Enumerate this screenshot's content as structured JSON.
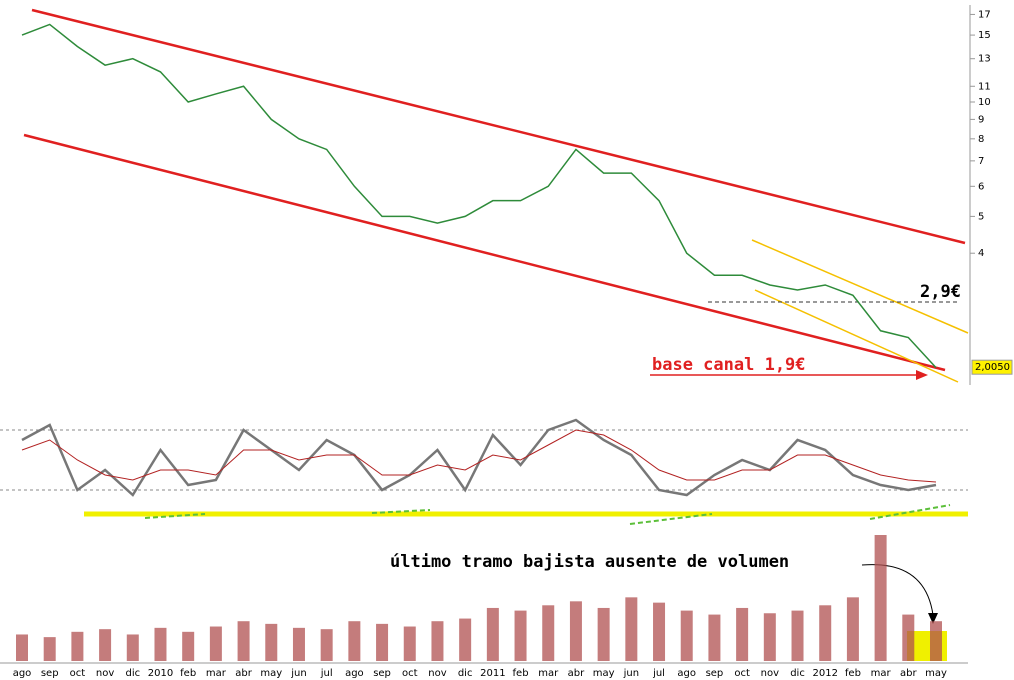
{
  "chart_data": [
    {
      "type": "line",
      "log_scale": true,
      "color": "#2e8b3a",
      "categories": [
        "ago",
        "sep",
        "oct",
        "nov",
        "dic",
        "2010",
        "feb",
        "mar",
        "abr",
        "may",
        "jun",
        "jul",
        "ago",
        "sep",
        "oct",
        "nov",
        "dic",
        "2011",
        "feb",
        "mar",
        "abr",
        "may",
        "jun",
        "jul",
        "ago",
        "sep",
        "oct",
        "nov",
        "dic",
        "2012",
        "feb",
        "mar",
        "abr",
        "may"
      ],
      "values": [
        15,
        16,
        14,
        12.5,
        13,
        12,
        10,
        10.5,
        11,
        9,
        8,
        7.5,
        6,
        5,
        5,
        4.8,
        5,
        5.5,
        5.5,
        6,
        7.5,
        6.5,
        6.5,
        5.5,
        4,
        3.5,
        3.5,
        3.3,
        3.2,
        3.3,
        3.1,
        2.5,
        2.4,
        2.0
      ],
      "ylim": [
        1.8,
        18
      ],
      "yticks": [
        4,
        5,
        6,
        7,
        8,
        9,
        10,
        11,
        13,
        15,
        17
      ],
      "last_price": {
        "value": 2.005,
        "label": "2,0050"
      },
      "annotations": [
        "2,9€",
        "base canal 1,9€"
      ]
    },
    {
      "type": "line",
      "ylim": [
        0,
        100
      ],
      "levels": [
        80,
        20
      ],
      "series": [
        {
          "color": "#777777",
          "values": [
            70,
            85,
            20,
            40,
            15,
            60,
            25,
            30,
            80,
            60,
            40,
            70,
            55,
            20,
            35,
            60,
            20,
            75,
            45,
            80,
            90,
            70,
            55,
            20,
            15,
            35,
            50,
            40,
            70,
            60,
            35,
            25,
            20,
            25
          ]
        },
        {
          "color": "#b22222",
          "values": [
            60,
            70,
            50,
            35,
            30,
            40,
            40,
            35,
            60,
            60,
            50,
            55,
            55,
            35,
            35,
            45,
            40,
            55,
            50,
            65,
            80,
            75,
            60,
            40,
            30,
            30,
            40,
            40,
            55,
            55,
            45,
            35,
            30,
            28
          ]
        }
      ]
    },
    {
      "type": "bar",
      "color": "#b05050",
      "values": [
        20,
        18,
        22,
        24,
        20,
        25,
        22,
        26,
        30,
        28,
        25,
        24,
        30,
        28,
        26,
        30,
        32,
        40,
        38,
        42,
        45,
        40,
        48,
        44,
        38,
        35,
        40,
        36,
        38,
        42,
        48,
        95,
        35,
        30
      ],
      "annotations": [
        "último tramo bajista ausente de volumen"
      ]
    }
  ]
}
